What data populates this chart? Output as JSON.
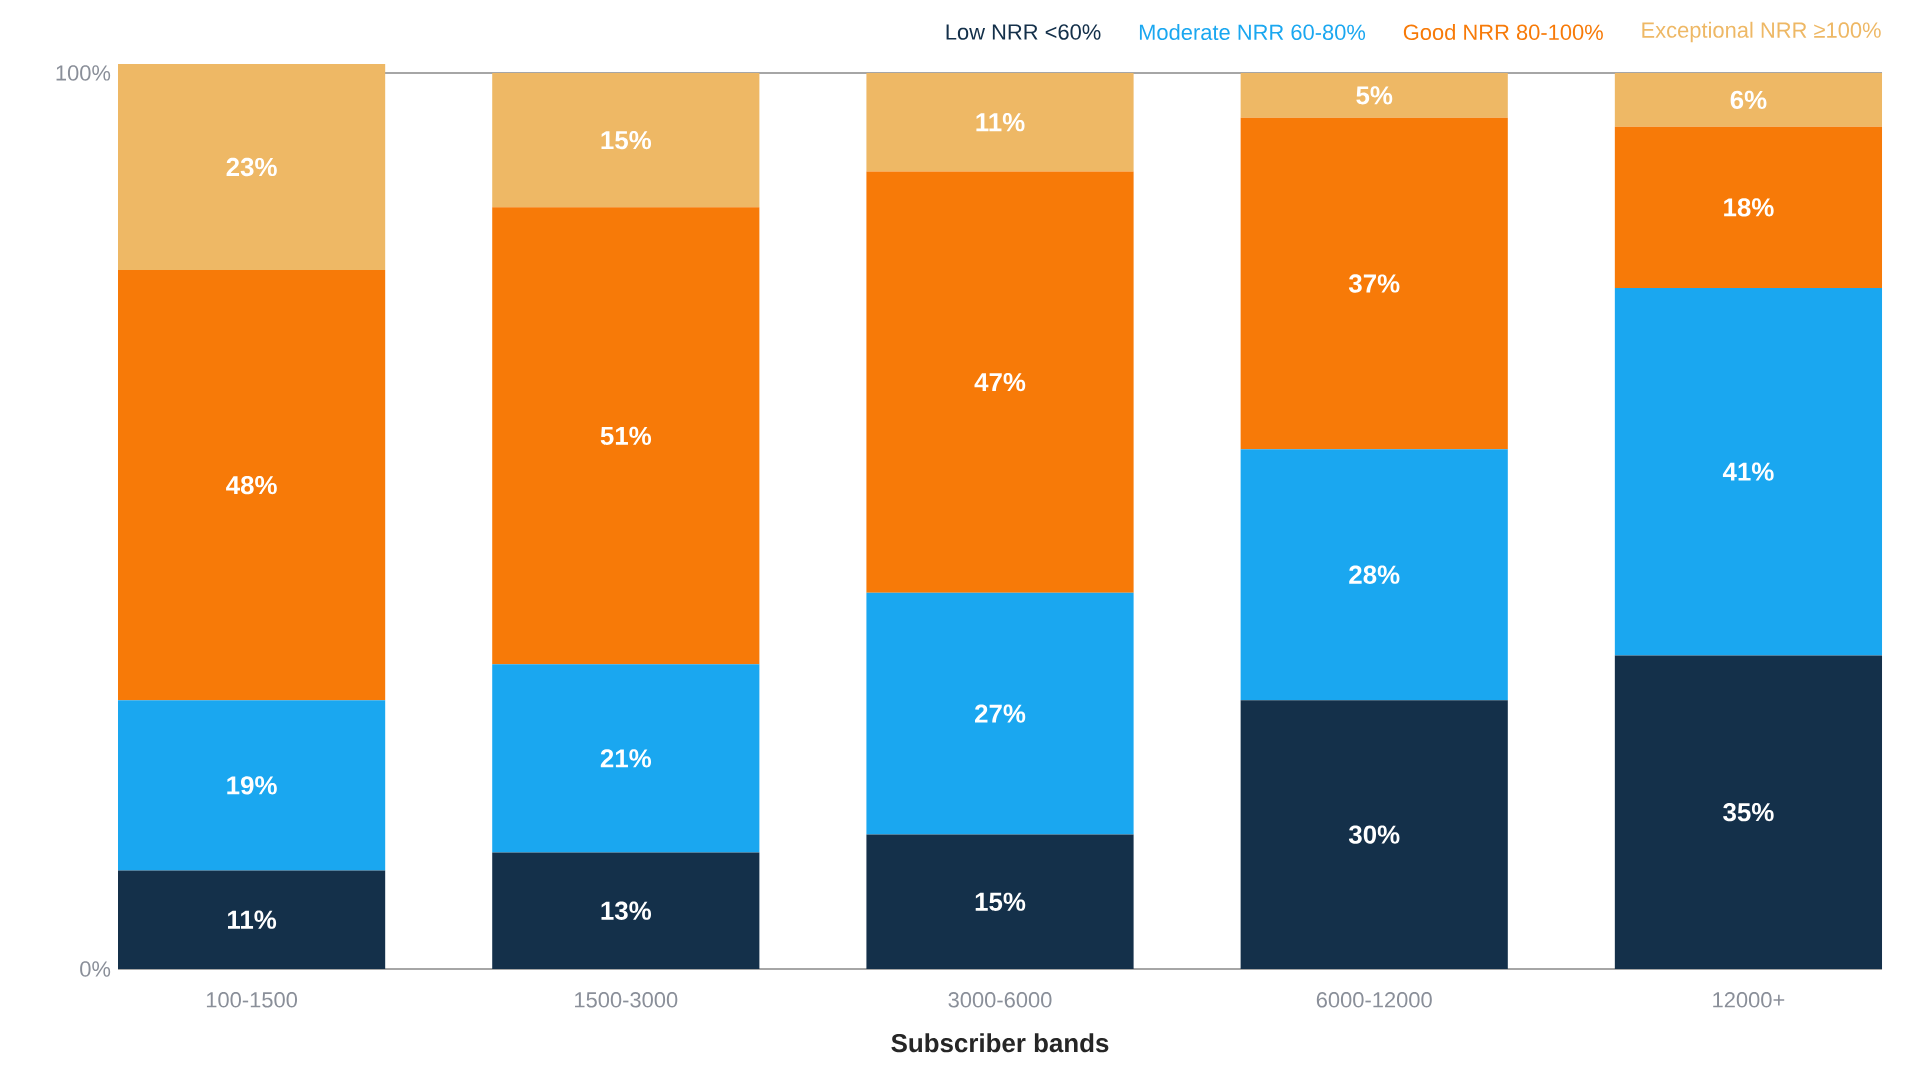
{
  "chart_data": {
    "type": "bar",
    "stacked": true,
    "xlabel": "Subscriber bands",
    "categories": [
      "100-1500",
      "1500-3000",
      "3000-6000",
      "6000-12000",
      "12000+"
    ],
    "series": [
      {
        "name": "Low NRR <60%",
        "color": "#14304a",
        "values": [
          11,
          13,
          15,
          30,
          35
        ],
        "value_labels": [
          "11%",
          "13%",
          "15%",
          "30%",
          "35%"
        ]
      },
      {
        "name": "Moderate NRR 60-80%",
        "color": "#1aa7f0",
        "values": [
          19,
          21,
          27,
          28,
          41
        ],
        "value_labels": [
          "19%",
          "21%",
          "27%",
          "28%",
          "41%"
        ]
      },
      {
        "name": "Good NRR 80-100%",
        "color": "#f77a08",
        "values": [
          48,
          51,
          47,
          37,
          18
        ],
        "value_labels": [
          "48%",
          "51%",
          "47%",
          "37%",
          "18%"
        ]
      },
      {
        "name": "Exceptional NRR ≥100%",
        "color": "#eeb865",
        "values": [
          23,
          15,
          11,
          5,
          6
        ],
        "value_labels": [
          "23%",
          "15%",
          "11%",
          "5%",
          "6%"
        ]
      }
    ],
    "ylim": [
      0,
      101
    ],
    "yticks": [
      {
        "value": 0,
        "label": "0%"
      },
      {
        "value": 100,
        "label": "100%"
      }
    ],
    "grid": "y",
    "legend": "top right"
  }
}
